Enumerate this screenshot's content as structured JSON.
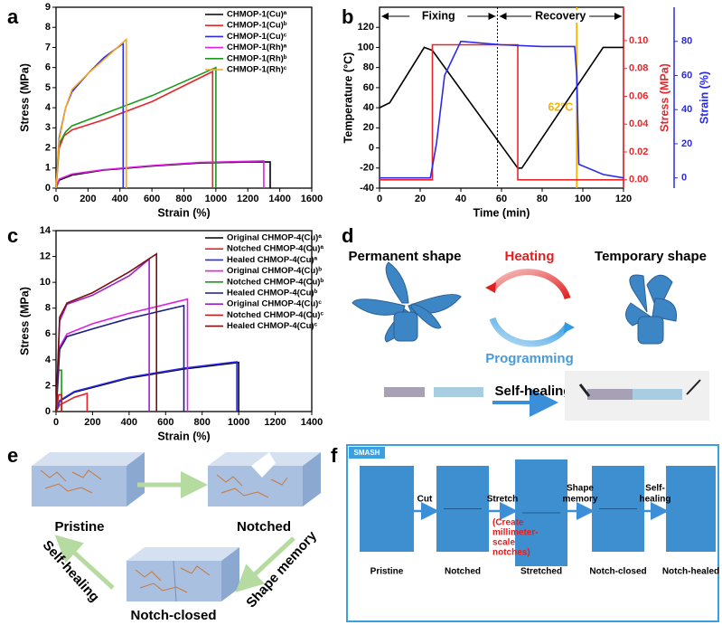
{
  "panel_letters": [
    "a",
    "b",
    "c",
    "d",
    "e",
    "f"
  ],
  "chart_data": [
    {
      "type": "line",
      "xlabel": "Strain (%)",
      "ylabel": "Stress (MPa)",
      "xlim": [
        0,
        1600
      ],
      "xticks": [
        0,
        200,
        400,
        600,
        800,
        1000,
        1200,
        1400,
        1600
      ],
      "ylim": [
        0,
        9
      ],
      "yticks": [
        0,
        1,
        2,
        3,
        4,
        5,
        6,
        7,
        8,
        9
      ],
      "legend": "upper right",
      "series": [
        {
          "name": "CHMOP-1(Cu)ᵃ",
          "color": "#000000",
          "x": [
            0,
            20,
            100,
            300,
            600,
            900,
            1200,
            1340,
            1340
          ],
          "values": [
            0,
            0.4,
            0.65,
            0.9,
            1.1,
            1.25,
            1.3,
            1.3,
            0
          ]
        },
        {
          "name": "CHMOP-1(Cu)ᵇ",
          "color": "#e8262a",
          "x": [
            0,
            20,
            50,
            100,
            300,
            600,
            980,
            980
          ],
          "values": [
            0,
            2,
            2.6,
            2.9,
            3.4,
            4.3,
            5.8,
            0
          ]
        },
        {
          "name": "CHMOP-1(Cu)ᶜ",
          "color": "#2a2ae8",
          "x": [
            0,
            20,
            60,
            100,
            200,
            300,
            420,
            420
          ],
          "values": [
            0,
            2.5,
            4,
            4.8,
            5.7,
            6.5,
            7.2,
            0
          ]
        },
        {
          "name": "CHMOP-1(Rh)ᵃ",
          "color": "#e020e0",
          "x": [
            0,
            20,
            100,
            300,
            600,
            900,
            1300,
            1300
          ],
          "values": [
            0,
            0.45,
            0.7,
            0.92,
            1.12,
            1.28,
            1.35,
            0
          ]
        },
        {
          "name": "CHMOP-1(Rh)ᵇ",
          "color": "#1a9a1a",
          "x": [
            0,
            20,
            60,
            100,
            300,
            600,
            1000,
            1000
          ],
          "values": [
            0,
            2.2,
            2.8,
            3.1,
            3.7,
            4.6,
            6,
            0
          ]
        },
        {
          "name": "CHMOP-1(Rh)ᶜ",
          "color": "#f5a623",
          "x": [
            0,
            20,
            60,
            100,
            200,
            300,
            440,
            440
          ],
          "values": [
            0,
            2.4,
            4,
            4.9,
            5.7,
            6.4,
            7.4,
            0
          ]
        }
      ]
    },
    {
      "type": "line",
      "xlabel": "Time (min)",
      "ylabel": "Temperature (°C)",
      "y2label": "Stress (MPa)",
      "y3label": "Strain (%)",
      "xlim": [
        0,
        120
      ],
      "xticks": [
        0,
        20,
        40,
        60,
        80,
        100,
        120
      ],
      "ylim": [
        -40,
        140
      ],
      "yticks": [
        -40,
        -20,
        0,
        20,
        40,
        60,
        80,
        100,
        120
      ],
      "y2lim": [
        -0.006,
        0.124
      ],
      "y2ticks": [
        {
          "value": 0,
          "label": "0.00"
        },
        0.02,
        0.04,
        0.06,
        0.08,
        {
          "value": 0.1,
          "label": "0.10"
        }
      ],
      "y2color": "#e8262a",
      "y3lim": [
        -6,
        100
      ],
      "y3ticks": [
        0,
        20,
        40,
        60,
        80
      ],
      "y3color": "#2a2ae8",
      "phases": [
        "Fixing",
        "Recovery"
      ],
      "vlines": [
        {
          "x": 58,
          "color": "#000000"
        },
        {
          "x": 97,
          "color": "#f5b400",
          "label": "62°C"
        }
      ],
      "series": [
        {
          "color": "#000000",
          "x": [
            0,
            5,
            22,
            26,
            68,
            70,
            110,
            120
          ],
          "values": [
            40,
            45,
            100,
            97,
            -20,
            -20,
            100,
            100
          ]
        },
        {
          "color": "#e8262a",
          "axis": "y2",
          "x": [
            0,
            26,
            26,
            68,
            68,
            120
          ],
          "values": [
            0,
            0,
            0.097,
            0.097,
            0,
            0
          ]
        },
        {
          "color": "#2a2ae8",
          "axis": "y3",
          "x": [
            0,
            25,
            28,
            32,
            40,
            60,
            80,
            96,
            97,
            98,
            110,
            120
          ],
          "values": [
            0,
            0,
            20,
            60,
            80,
            78,
            77,
            77,
            60,
            8,
            2,
            0
          ]
        }
      ]
    },
    {
      "type": "line",
      "xlabel": "Strain (%)",
      "ylabel": "Stress (MPa)",
      "xlim": [
        0,
        1400
      ],
      "xticks": [
        0,
        200,
        400,
        600,
        800,
        1000,
        1200,
        1400
      ],
      "ylim": [
        0,
        14
      ],
      "yticks": [
        0,
        2,
        4,
        6,
        8,
        10,
        12,
        14
      ],
      "legend": "upper right",
      "series": [
        {
          "name": "Original CHMOP-4(Cu)ᵃ",
          "color": "#000000",
          "x": [
            0,
            20,
            100,
            400,
            700,
            1000,
            1000
          ],
          "values": [
            0,
            0.8,
            1.5,
            2.6,
            3.3,
            3.8,
            0
          ]
        },
        {
          "name": "Notched CHMOP-4(Cu)ᵃ",
          "color": "#e8262a",
          "x": [
            0,
            20,
            100,
            170,
            170
          ],
          "values": [
            0,
            0.5,
            1.1,
            1.4,
            0
          ]
        },
        {
          "name": "Healed CHMOP-4(Cu)ᵃ",
          "color": "#2a2ae8",
          "x": [
            0,
            20,
            100,
            400,
            700,
            990,
            990
          ],
          "values": [
            0,
            0.85,
            1.55,
            2.65,
            3.35,
            3.85,
            0
          ]
        },
        {
          "name": "Original CHMOP-4(Cu)ᵇ",
          "color": "#e020e0",
          "x": [
            0,
            20,
            60,
            200,
            400,
            720,
            720
          ],
          "values": [
            0,
            5,
            6,
            6.8,
            7.6,
            8.7,
            0
          ]
        },
        {
          "name": "Notched CHMOP-4(Cu)ᵇ",
          "color": "#1a9a1a",
          "x": [
            0,
            15,
            30,
            30
          ],
          "values": [
            0,
            3.2,
            3.2,
            0
          ]
        },
        {
          "name": "Healed CHMOP-4(Cu)ᵇ",
          "color": "#1a1a8a",
          "x": [
            0,
            20,
            60,
            200,
            400,
            700,
            700
          ],
          "values": [
            0,
            4.8,
            5.8,
            6.4,
            7.2,
            8.2,
            0
          ]
        },
        {
          "name": "Original CHMOP-4(Cu)ᶜ",
          "color": "#9a20d0",
          "x": [
            0,
            20,
            60,
            200,
            400,
            510,
            510
          ],
          "values": [
            0,
            7,
            8.3,
            9,
            10.5,
            11.8,
            0
          ]
        },
        {
          "name": "Notched CHMOP-4(Cu)ᶜ",
          "color": "#c02020",
          "x": [
            0,
            15,
            30,
            30
          ],
          "values": [
            0,
            1.3,
            1.3,
            0
          ]
        },
        {
          "name": "Healed CHMOP-4(Cu)ᶜ",
          "color": "#7a1010",
          "x": [
            0,
            20,
            60,
            200,
            400,
            550,
            550
          ],
          "values": [
            0,
            7.3,
            8.4,
            9.2,
            10.8,
            12.2,
            0
          ]
        }
      ]
    }
  ],
  "diagram_d": {
    "permanent": "Permanent shape",
    "temporary": "Temporary shape",
    "heating": "Heating",
    "programming": "Programming",
    "self_healing": "Self-healing"
  },
  "diagram_e": {
    "pristine": "Pristine",
    "notched": "Notched",
    "notch_closed": "Notch-closed",
    "shape_memory": "Shape memory",
    "self_healing": "Self-healing"
  },
  "diagram_f": {
    "badge": "SMASH",
    "cut": "Cut",
    "stretch": "Stretch",
    "stretch_note": [
      "(Create",
      "millimeter-",
      "scale",
      "notches)"
    ],
    "shape_memory": [
      "Shape",
      "memory"
    ],
    "self_healing": [
      "Self-",
      "healing"
    ],
    "stages": [
      "Pristine",
      "Notched",
      "Stretched",
      "Notch-closed",
      "Notch-healed"
    ]
  }
}
